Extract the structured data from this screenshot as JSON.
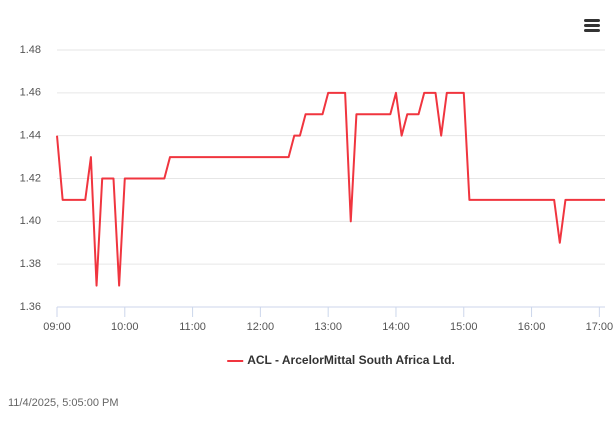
{
  "chart_data": {
    "type": "line",
    "x": [
      "09:00",
      "09:05",
      "09:25",
      "09:30",
      "09:35",
      "09:40",
      "09:50",
      "09:55",
      "10:00",
      "10:35",
      "10:40",
      "12:25",
      "12:30",
      "12:35",
      "12:40",
      "12:55",
      "13:00",
      "13:15",
      "13:20",
      "13:25",
      "13:55",
      "14:00",
      "14:05",
      "14:10",
      "14:20",
      "14:25",
      "14:35",
      "14:40",
      "14:45",
      "15:00",
      "15:05",
      "16:20",
      "16:25",
      "16:30",
      "17:05"
    ],
    "series": [
      {
        "name": "ACL - ArcelorMittal South Africa Ltd.",
        "color": "#f0353f",
        "values": [
          1.44,
          1.41,
          1.41,
          1.43,
          1.37,
          1.42,
          1.42,
          1.37,
          1.42,
          1.42,
          1.43,
          1.43,
          1.44,
          1.44,
          1.45,
          1.45,
          1.46,
          1.46,
          1.4,
          1.45,
          1.45,
          1.46,
          1.44,
          1.45,
          1.45,
          1.46,
          1.46,
          1.44,
          1.46,
          1.46,
          1.41,
          1.41,
          1.39,
          1.41,
          1.41
        ]
      }
    ],
    "xlim": [
      "09:00",
      "17:05"
    ],
    "xticks": [
      "09:00",
      "10:00",
      "11:00",
      "12:00",
      "13:00",
      "14:00",
      "15:00",
      "16:00",
      "17:00"
    ],
    "ylim": [
      1.36,
      1.48
    ],
    "yticks": [
      1.36,
      1.38,
      {
        "value": 1.4,
        "label": "1.40"
      },
      1.42,
      1.44,
      1.46,
      1.48
    ],
    "grid": true,
    "legend": "bottom"
  },
  "timestamp": "11/4/2025, 5:05:00 PM"
}
